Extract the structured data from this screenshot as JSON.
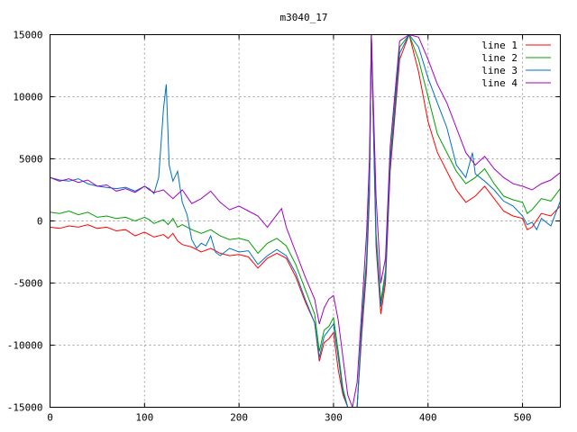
{
  "chart_data": {
    "type": "line",
    "title": "m3040_17",
    "xlabel": "",
    "ylabel": "",
    "xlim": [
      0,
      540
    ],
    "ylim": [
      -15000,
      15000
    ],
    "xticks": [
      0,
      100,
      200,
      300,
      400,
      500
    ],
    "yticks": [
      -15000,
      -10000,
      -5000,
      0,
      5000,
      10000,
      15000
    ],
    "xtick_labels": [
      "0",
      "100",
      "200",
      "300",
      "400",
      "500"
    ],
    "ytick_labels": [
      "-15000",
      "-10000",
      "-5000",
      "0",
      "5000",
      "10000",
      "15000"
    ],
    "grid": true,
    "legend_position": "top-right",
    "series": [
      {
        "name": "line 1",
        "color": "#ff0000",
        "points": [
          [
            0,
            -500
          ],
          [
            10,
            -600
          ],
          [
            20,
            -400
          ],
          [
            30,
            -500
          ],
          [
            40,
            -300
          ],
          [
            50,
            -600
          ],
          [
            60,
            -500
          ],
          [
            70,
            -800
          ],
          [
            80,
            -700
          ],
          [
            90,
            -1200
          ],
          [
            100,
            -900
          ],
          [
            105,
            -1100
          ],
          [
            110,
            -1300
          ],
          [
            120,
            -1100
          ],
          [
            125,
            -1400
          ],
          [
            130,
            -1000
          ],
          [
            135,
            -1600
          ],
          [
            140,
            -1900
          ],
          [
            150,
            -2100
          ],
          [
            160,
            -2500
          ],
          [
            170,
            -2200
          ],
          [
            180,
            -2600
          ],
          [
            190,
            -2800
          ],
          [
            200,
            -2700
          ],
          [
            210,
            -2900
          ],
          [
            220,
            -3800
          ],
          [
            230,
            -3000
          ],
          [
            240,
            -2600
          ],
          [
            250,
            -3000
          ],
          [
            260,
            -4500
          ],
          [
            270,
            -6500
          ],
          [
            280,
            -8200
          ],
          [
            285,
            -11300
          ],
          [
            290,
            -9800
          ],
          [
            295,
            -9500
          ],
          [
            300,
            -9000
          ],
          [
            305,
            -12000
          ],
          [
            310,
            -14000
          ],
          [
            315,
            -15000
          ],
          [
            320,
            -15000
          ],
          [
            325,
            -15000
          ],
          [
            330,
            -9000
          ],
          [
            335,
            -4000
          ],
          [
            338,
            2000
          ],
          [
            340,
            15000
          ],
          [
            345,
            -2000
          ],
          [
            350,
            -7500
          ],
          [
            355,
            -5000
          ],
          [
            360,
            4000
          ],
          [
            370,
            13000
          ],
          [
            380,
            15000
          ],
          [
            390,
            12000
          ],
          [
            400,
            8000
          ],
          [
            410,
            5500
          ],
          [
            420,
            4000
          ],
          [
            430,
            2500
          ],
          [
            440,
            1500
          ],
          [
            450,
            2000
          ],
          [
            460,
            2800
          ],
          [
            470,
            1800
          ],
          [
            480,
            800
          ],
          [
            490,
            400
          ],
          [
            500,
            200
          ],
          [
            505,
            -700
          ],
          [
            510,
            -500
          ],
          [
            520,
            600
          ],
          [
            530,
            400
          ],
          [
            540,
            1200
          ]
        ]
      },
      {
        "name": "line 2",
        "color": "#00a000",
        "points": [
          [
            0,
            700
          ],
          [
            10,
            600
          ],
          [
            20,
            800
          ],
          [
            30,
            500
          ],
          [
            40,
            700
          ],
          [
            50,
            300
          ],
          [
            60,
            400
          ],
          [
            70,
            200
          ],
          [
            80,
            300
          ],
          [
            90,
            0
          ],
          [
            100,
            300
          ],
          [
            105,
            100
          ],
          [
            110,
            -200
          ],
          [
            120,
            100
          ],
          [
            125,
            -300
          ],
          [
            130,
            200
          ],
          [
            135,
            -500
          ],
          [
            140,
            -300
          ],
          [
            150,
            -700
          ],
          [
            160,
            -1000
          ],
          [
            170,
            -700
          ],
          [
            180,
            -1200
          ],
          [
            190,
            -1500
          ],
          [
            200,
            -1400
          ],
          [
            210,
            -1600
          ],
          [
            220,
            -2600
          ],
          [
            230,
            -1800
          ],
          [
            240,
            -1400
          ],
          [
            250,
            -2000
          ],
          [
            260,
            -3500
          ],
          [
            270,
            -5500
          ],
          [
            280,
            -7500
          ],
          [
            285,
            -10500
          ],
          [
            290,
            -8800
          ],
          [
            295,
            -8500
          ],
          [
            300,
            -7800
          ],
          [
            305,
            -10500
          ],
          [
            310,
            -13500
          ],
          [
            315,
            -15000
          ],
          [
            320,
            -15000
          ],
          [
            325,
            -15000
          ],
          [
            330,
            -8000
          ],
          [
            335,
            -3000
          ],
          [
            338,
            3000
          ],
          [
            340,
            15000
          ],
          [
            345,
            -1000
          ],
          [
            350,
            -6500
          ],
          [
            355,
            -4000
          ],
          [
            360,
            5000
          ],
          [
            370,
            14000
          ],
          [
            380,
            15000
          ],
          [
            390,
            13000
          ],
          [
            400,
            10000
          ],
          [
            410,
            7000
          ],
          [
            420,
            5500
          ],
          [
            430,
            4000
          ],
          [
            440,
            3000
          ],
          [
            450,
            3500
          ],
          [
            460,
            4200
          ],
          [
            470,
            3000
          ],
          [
            480,
            2000
          ],
          [
            490,
            1700
          ],
          [
            500,
            1500
          ],
          [
            505,
            600
          ],
          [
            510,
            900
          ],
          [
            520,
            1800
          ],
          [
            530,
            1600
          ],
          [
            540,
            2600
          ]
        ]
      },
      {
        "name": "line 3",
        "color": "#0070c0",
        "points": [
          [
            0,
            3500
          ],
          [
            10,
            3300
          ],
          [
            20,
            3200
          ],
          [
            30,
            3400
          ],
          [
            40,
            3000
          ],
          [
            50,
            2800
          ],
          [
            60,
            2700
          ],
          [
            70,
            2600
          ],
          [
            80,
            2700
          ],
          [
            90,
            2400
          ],
          [
            100,
            2800
          ],
          [
            105,
            2600
          ],
          [
            110,
            2200
          ],
          [
            115,
            3500
          ],
          [
            120,
            9000
          ],
          [
            123,
            11000
          ],
          [
            126,
            4500
          ],
          [
            130,
            3200
          ],
          [
            135,
            4000
          ],
          [
            140,
            1500
          ],
          [
            145,
            500
          ],
          [
            150,
            -1500
          ],
          [
            155,
            -2200
          ],
          [
            160,
            -1800
          ],
          [
            165,
            -2000
          ],
          [
            170,
            -1200
          ],
          [
            175,
            -2500
          ],
          [
            180,
            -2800
          ],
          [
            190,
            -2200
          ],
          [
            200,
            -2500
          ],
          [
            210,
            -2400
          ],
          [
            220,
            -3500
          ],
          [
            230,
            -2800
          ],
          [
            240,
            -2300
          ],
          [
            250,
            -2800
          ],
          [
            260,
            -4200
          ],
          [
            270,
            -6300
          ],
          [
            280,
            -8200
          ],
          [
            285,
            -11000
          ],
          [
            290,
            -9300
          ],
          [
            295,
            -8800
          ],
          [
            300,
            -8300
          ],
          [
            305,
            -11000
          ],
          [
            310,
            -13800
          ],
          [
            315,
            -15000
          ],
          [
            320,
            -15000
          ],
          [
            325,
            -15000
          ],
          [
            330,
            -8500
          ],
          [
            335,
            -3500
          ],
          [
            338,
            2500
          ],
          [
            340,
            15000
          ],
          [
            345,
            -1500
          ],
          [
            350,
            -6900
          ],
          [
            355,
            -4500
          ],
          [
            360,
            4500
          ],
          [
            370,
            13500
          ],
          [
            380,
            15000
          ],
          [
            390,
            14000
          ],
          [
            400,
            11500
          ],
          [
            410,
            9500
          ],
          [
            420,
            7500
          ],
          [
            430,
            4500
          ],
          [
            440,
            3500
          ],
          [
            447,
            5500
          ],
          [
            450,
            3800
          ],
          [
            460,
            3200
          ],
          [
            470,
            2500
          ],
          [
            480,
            1600
          ],
          [
            490,
            1200
          ],
          [
            500,
            400
          ],
          [
            505,
            -300
          ],
          [
            510,
            -100
          ],
          [
            515,
            -700
          ],
          [
            520,
            200
          ],
          [
            530,
            -400
          ],
          [
            540,
            1600
          ]
        ]
      },
      {
        "name": "line 4",
        "color": "#a000c0",
        "points": [
          [
            0,
            3500
          ],
          [
            10,
            3200
          ],
          [
            20,
            3400
          ],
          [
            30,
            3100
          ],
          [
            40,
            3300
          ],
          [
            50,
            2800
          ],
          [
            60,
            2900
          ],
          [
            70,
            2400
          ],
          [
            80,
            2600
          ],
          [
            90,
            2300
          ],
          [
            100,
            2800
          ],
          [
            105,
            2500
          ],
          [
            110,
            2300
          ],
          [
            120,
            2500
          ],
          [
            130,
            1800
          ],
          [
            140,
            2500
          ],
          [
            150,
            1400
          ],
          [
            160,
            1800
          ],
          [
            170,
            2400
          ],
          [
            180,
            1500
          ],
          [
            190,
            900
          ],
          [
            200,
            1200
          ],
          [
            210,
            800
          ],
          [
            220,
            400
          ],
          [
            230,
            -500
          ],
          [
            240,
            500
          ],
          [
            245,
            1000
          ],
          [
            250,
            -500
          ],
          [
            260,
            -2500
          ],
          [
            270,
            -4500
          ],
          [
            280,
            -6300
          ],
          [
            285,
            -8300
          ],
          [
            290,
            -7000
          ],
          [
            295,
            -6300
          ],
          [
            300,
            -6000
          ],
          [
            305,
            -8000
          ],
          [
            310,
            -11000
          ],
          [
            315,
            -14000
          ],
          [
            320,
            -15000
          ],
          [
            325,
            -13000
          ],
          [
            330,
            -7000
          ],
          [
            335,
            -1000
          ],
          [
            338,
            5000
          ],
          [
            340,
            15000
          ],
          [
            345,
            2000
          ],
          [
            350,
            -5000
          ],
          [
            355,
            -3000
          ],
          [
            360,
            6000
          ],
          [
            370,
            14500
          ],
          [
            380,
            15000
          ],
          [
            390,
            14800
          ],
          [
            400,
            13000
          ],
          [
            410,
            11000
          ],
          [
            420,
            9500
          ],
          [
            430,
            7500
          ],
          [
            440,
            5500
          ],
          [
            450,
            4500
          ],
          [
            460,
            5200
          ],
          [
            470,
            4200
          ],
          [
            480,
            3500
          ],
          [
            490,
            3000
          ],
          [
            500,
            2800
          ],
          [
            510,
            2500
          ],
          [
            520,
            3000
          ],
          [
            530,
            3300
          ],
          [
            540,
            3900
          ]
        ]
      }
    ]
  }
}
